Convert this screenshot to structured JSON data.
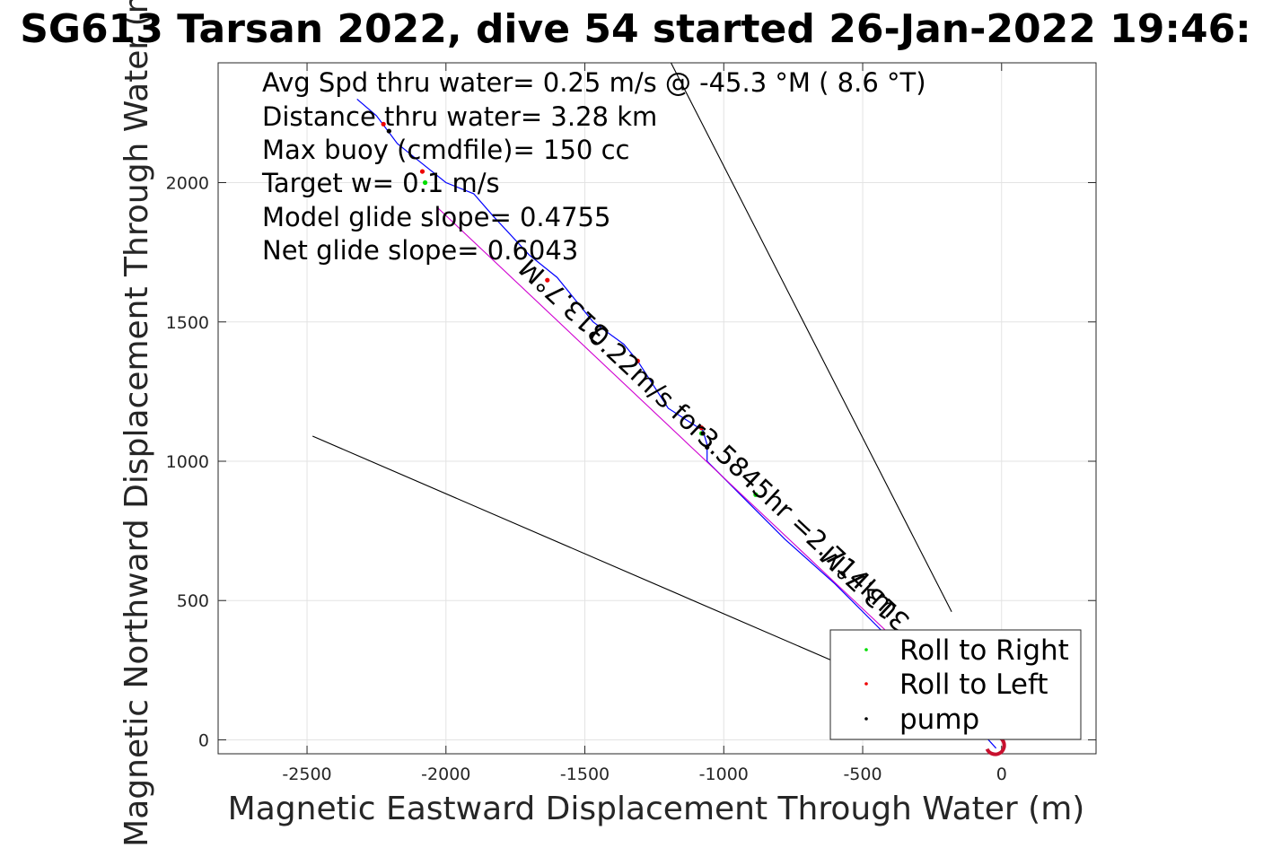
{
  "title": "SG613 Tarsan 2022, dive 54 started 26-Jan-2022 19:46:",
  "info_lines": [
    "Avg Spd thru water=  0.25 m/s @ -45.3 °M (  8.6 °T)",
    "Distance thru water=  3.28 km",
    "Max buoy (cmdfile)= 150 cc",
    "Target w= 0.1 m/s",
    "Model glide slope= 0.4755",
    "Net glide slope= 0.6043"
  ],
  "line_annotations": {
    "heading": "313.7°M",
    "speed_time": "0.22m/s for3.5845hr =2.714km",
    "heading_lower": "313.7°M"
  },
  "legend": {
    "items": [
      {
        "label": "Roll to Right",
        "color": "#00dd00"
      },
      {
        "label": "Roll to Left",
        "color": "#ee0000"
      },
      {
        "label": "pump",
        "color": "#000000"
      }
    ]
  },
  "colors": {
    "track": "#0000ff",
    "net_track": "#d000d0",
    "reference_lines": "#000000",
    "start_marker": "#c8102e"
  },
  "chart_data": {
    "type": "line",
    "title": "SG613 Tarsan 2022, dive 54 started 26-Jan-2022 19:46:",
    "xlabel": "Magnetic Eastward Displacement Through Water (m)",
    "ylabel": "Magnetic Northward Displacement Through Water (m)",
    "xlim": [
      -2820,
      340
    ],
    "ylim": [
      -50,
      2430
    ],
    "xticks": [
      -2500,
      -2000,
      -1500,
      -1000,
      -500,
      0
    ],
    "yticks": [
      0,
      500,
      1000,
      1500,
      2000
    ],
    "xtick_labels": [
      "-2500",
      "-2000",
      "-1500",
      "-1000",
      "-500",
      "0"
    ],
    "ytick_labels": [
      "0",
      "500",
      "1000",
      "1500",
      "2000"
    ],
    "grid": true,
    "legend_position": "bottom-right",
    "series": [
      {
        "name": "",
        "color": "#0000ff",
        "points": [
          [
            -20,
            -30
          ],
          [
            -120,
            80
          ],
          [
            -250,
            220
          ],
          [
            -420,
            380
          ],
          [
            -600,
            560
          ],
          [
            -780,
            720
          ],
          [
            -900,
            840
          ],
          [
            -1000,
            940
          ],
          [
            -1060,
            1000
          ],
          [
            -1060,
            1060
          ],
          [
            -1075,
            1110
          ],
          [
            -1200,
            1190
          ],
          [
            -1310,
            1360
          ],
          [
            -1360,
            1420
          ],
          [
            -1470,
            1500
          ],
          [
            -1600,
            1660
          ],
          [
            -1700,
            1740
          ],
          [
            -1830,
            1880
          ],
          [
            -1900,
            1960
          ],
          [
            -2000,
            2000
          ],
          [
            -2100,
            2080
          ],
          [
            -2175,
            2140
          ],
          [
            -2220,
            2200
          ],
          [
            -2250,
            2240
          ],
          [
            -2320,
            2300
          ]
        ]
      },
      {
        "name": "",
        "color": "#d000d0",
        "points": [
          [
            0,
            0
          ],
          [
            -2030,
            1910
          ]
        ]
      },
      {
        "name": "",
        "color": "#000000",
        "points": [
          [
            -1190,
            2430
          ],
          [
            -180,
            460
          ]
        ]
      },
      {
        "name": "",
        "color": "#000000",
        "points": [
          [
            -2480,
            1090
          ],
          [
            -600,
            280
          ]
        ]
      }
    ],
    "roll_right_points": [
      [
        -2075,
        2000
      ],
      [
        -885,
        880
      ],
      [
        -1080,
        1100
      ]
    ],
    "roll_left_points": [
      [
        -2225,
        2210
      ],
      [
        -2085,
        2040
      ],
      [
        -1635,
        1650
      ],
      [
        -1310,
        1360
      ],
      [
        -1080,
        1120
      ]
    ],
    "pump_points": [
      [
        -2205,
        2185
      ],
      [
        -1060,
        1050
      ],
      [
        -1075,
        1100
      ]
    ]
  }
}
